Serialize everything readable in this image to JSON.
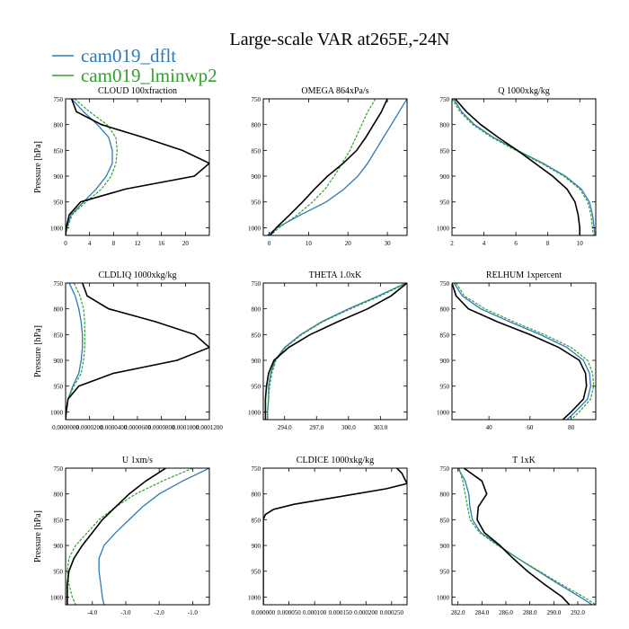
{
  "figure": {
    "title": "Large-scale VAR at265E,-24N",
    "legend": [
      {
        "name": "cam019_dflt",
        "color": "#2b7bb9"
      },
      {
        "name": "cam019_lminwp2",
        "color": "#33a02c"
      }
    ],
    "ref_line_color": "#000000"
  },
  "chart_data": [
    {
      "type": "line",
      "title": "CLOUD 100xfraction",
      "ylabel": "Pressure [hPa]",
      "xlim": [
        0,
        24
      ],
      "ylim": [
        1015,
        750
      ],
      "xticks": [
        "0",
        "4",
        "8",
        "12",
        "16",
        "20"
      ],
      "xtick_values": [
        0,
        4,
        8,
        12,
        16,
        20
      ],
      "yticks": [
        "750",
        "800",
        "850",
        "900",
        "950",
        "1000"
      ],
      "ytick_values": [
        750,
        800,
        850,
        900,
        950,
        1000
      ],
      "y": [
        750,
        775,
        800,
        825,
        850,
        875,
        900,
        925,
        950,
        975,
        1000,
        1015
      ],
      "series": [
        {
          "name": "cam019_dflt",
          "values": [
            1.0,
            3.0,
            5.3,
            7.2,
            7.8,
            7.8,
            6.8,
            5.1,
            3.0,
            0.9,
            0.2,
            0.0
          ]
        },
        {
          "name": "cam019_lminwp2",
          "values": [
            1.5,
            4.0,
            6.9,
            8.4,
            8.6,
            8.4,
            7.6,
            6.0,
            3.4,
            1.1,
            0.3,
            0.0
          ]
        },
        {
          "name": "",
          "values": [
            1.0,
            1.8,
            6.0,
            13.0,
            19.5,
            24.0,
            21.5,
            10.0,
            2.5,
            0.6,
            0.1,
            0.0
          ]
        }
      ]
    },
    {
      "type": "line",
      "title": "OMEGA 864xPa/s",
      "ylabel": "",
      "xlim": [
        -1.5,
        35
      ],
      "ylim": [
        1015,
        750
      ],
      "xticks": [
        "0",
        "10",
        "20",
        "30"
      ],
      "xtick_values": [
        0,
        10,
        20,
        30
      ],
      "yticks": [
        "750",
        "800",
        "850",
        "900",
        "950",
        "1000"
      ],
      "ytick_values": [
        750,
        800,
        850,
        900,
        950,
        1000
      ],
      "y": [
        750,
        775,
        800,
        825,
        850,
        875,
        900,
        925,
        950,
        975,
        1000,
        1015
      ],
      "series": [
        {
          "name": "cam019_dflt",
          "values": [
            35,
            33,
            31,
            29,
            27,
            25,
            22.5,
            19,
            14.5,
            8,
            2,
            -0.5
          ]
        },
        {
          "name": "cam019_lminwp2",
          "values": [
            27,
            25,
            23.5,
            22,
            20.5,
            18.5,
            16.5,
            14.2,
            11,
            7.2,
            2.5,
            0.3
          ]
        },
        {
          "name": "",
          "values": [
            30,
            28.5,
            26.5,
            24.5,
            22.2,
            18.8,
            14.8,
            11.5,
            8.5,
            5.2,
            1.8,
            0.2
          ]
        }
      ]
    },
    {
      "type": "line",
      "title": "Q 1000xkg/kg",
      "ylabel": "",
      "xlim": [
        2,
        11
      ],
      "ylim": [
        1015,
        750
      ],
      "xticks": [
        "2",
        "4",
        "6",
        "8",
        "10"
      ],
      "xtick_values": [
        2,
        4,
        6,
        8,
        10
      ],
      "yticks": [
        "750",
        "800",
        "850",
        "900",
        "950",
        "1000"
      ],
      "ytick_values": [
        750,
        800,
        850,
        900,
        950,
        1000
      ],
      "y": [
        750,
        775,
        800,
        825,
        850,
        875,
        900,
        925,
        950,
        975,
        1000,
        1015
      ],
      "series": [
        {
          "name": "cam019_dflt",
          "values": [
            2.1,
            2.6,
            3.4,
            4.6,
            6.1,
            7.7,
            9.1,
            10.1,
            10.6,
            10.8,
            10.9,
            10.95
          ]
        },
        {
          "name": "cam019_lminwp2",
          "values": [
            2.0,
            2.5,
            3.3,
            4.5,
            6.0,
            7.6,
            9.0,
            10.0,
            10.5,
            10.7,
            10.8,
            10.85
          ]
        },
        {
          "name": "",
          "values": [
            2.2,
            2.9,
            3.8,
            4.9,
            6.1,
            7.2,
            8.3,
            9.2,
            9.7,
            9.9,
            10.0,
            10.0
          ]
        }
      ]
    },
    {
      "type": "line",
      "title": "CLDLIQ 1000xkg/kg",
      "ylabel": "Pressure [hPa]",
      "xlim": [
        0,
        0.00012
      ],
      "ylim": [
        1015,
        750
      ],
      "xticks": [
        "0.0000000",
        "0.0000200",
        "0.0000400",
        "0.0000600",
        "0.0000800",
        "0.0001000",
        "0.0001200"
      ],
      "xtick_values": [
        0,
        2e-05,
        4e-05,
        6e-05,
        8e-05,
        0.0001,
        0.00012
      ],
      "yticks": [
        "750",
        "800",
        "850",
        "900",
        "950",
        "1000"
      ],
      "ytick_values": [
        750,
        800,
        850,
        900,
        950,
        1000
      ],
      "y": [
        750,
        775,
        800,
        825,
        850,
        875,
        900,
        925,
        950,
        975,
        1000,
        1015
      ],
      "series": [
        {
          "name": "cam019_dflt",
          "values": [
            3e-06,
            8e-06,
            1.1e-05,
            1.3e-05,
            1.4e-05,
            1.4e-05,
            1.3e-05,
            1.1e-05,
            6e-06,
            2e-06,
            5e-07,
            0
          ]
        },
        {
          "name": "cam019_lminwp2",
          "values": [
            7e-06,
            1.2e-05,
            1.5e-05,
            1.6e-05,
            1.6e-05,
            1.6e-05,
            1.5e-05,
            1.3e-05,
            7e-06,
            2e-06,
            5e-07,
            0
          ]
        },
        {
          "name": "",
          "values": [
            1.4e-05,
            1.8e-05,
            3.6e-05,
            7.5e-05,
            0.000108,
            0.00012,
            9.3e-05,
            4e-05,
            1.1e-05,
            2e-06,
            5e-07,
            0
          ]
        }
      ]
    },
    {
      "type": "line",
      "title": "THETA 1.0xK",
      "ylabel": "",
      "xlim": [
        292,
        305.5
      ],
      "ylim": [
        1015,
        750
      ],
      "xticks": [
        "294.0",
        "297.0",
        "300.0",
        "303.0"
      ],
      "xtick_values": [
        294,
        297,
        300,
        303
      ],
      "yticks": [
        "750",
        "800",
        "850",
        "900",
        "950",
        "1000"
      ],
      "ytick_values": [
        750,
        800,
        850,
        900,
        950,
        1000
      ],
      "y": [
        750,
        775,
        800,
        825,
        850,
        875,
        900,
        925,
        950,
        975,
        1000,
        1015
      ],
      "series": [
        {
          "name": "cam019_dflt",
          "values": [
            305.4,
            302.8,
            300.0,
            297.5,
            295.5,
            294.0,
            293.1,
            292.7,
            292.5,
            292.5,
            292.4,
            292.4
          ]
        },
        {
          "name": "cam019_lminwp2",
          "values": [
            305.5,
            303.0,
            300.2,
            297.6,
            295.6,
            294.1,
            293.2,
            292.8,
            292.6,
            292.5,
            292.4,
            292.4
          ]
        },
        {
          "name": "",
          "values": [
            305.5,
            304.0,
            301.8,
            299.0,
            296.4,
            294.4,
            293.0,
            292.5,
            292.3,
            292.2,
            292.2,
            292.2
          ]
        }
      ]
    },
    {
      "type": "line",
      "title": "RELHUM 1xpercent",
      "ylabel": "",
      "xlim": [
        22,
        92
      ],
      "ylim": [
        1015,
        750
      ],
      "xticks": [
        "40",
        "60",
        "80"
      ],
      "xtick_values": [
        40,
        60,
        80
      ],
      "yticks": [
        "750",
        "800",
        "850",
        "900",
        "950",
        "1000"
      ],
      "ytick_values": [
        750,
        800,
        850,
        900,
        950,
        1000
      ],
      "y": [
        750,
        775,
        800,
        825,
        850,
        875,
        900,
        925,
        950,
        975,
        1000,
        1015
      ],
      "series": [
        {
          "name": "cam019_dflt",
          "values": [
            23,
            27,
            36,
            50,
            65,
            78,
            86,
            89,
            89.5,
            88,
            82,
            78
          ]
        },
        {
          "name": "cam019_lminwp2",
          "values": [
            24,
            28,
            38,
            52,
            67,
            80,
            88,
            90.5,
            91,
            89.5,
            84,
            80
          ]
        },
        {
          "name": "",
          "values": [
            22,
            24,
            30,
            44,
            60,
            74,
            84,
            87,
            87.5,
            86,
            80,
            76
          ]
        }
      ]
    },
    {
      "type": "line",
      "title": "U 1xm/s",
      "ylabel": "Pressure [hPa]",
      "xlim": [
        -4.8,
        -0.5
      ],
      "ylim": [
        1015,
        750
      ],
      "xticks": [
        "-4.0",
        "-3.0",
        "-2.0",
        "-1.0"
      ],
      "xtick_values": [
        -4,
        -3,
        -2,
        -1
      ],
      "yticks": [
        "750",
        "800",
        "850",
        "900",
        "950",
        "1000"
      ],
      "ytick_values": [
        750,
        800,
        850,
        900,
        950,
        1000
      ],
      "y": [
        750,
        775,
        800,
        825,
        850,
        875,
        900,
        925,
        950,
        975,
        1000,
        1015
      ],
      "series": [
        {
          "name": "cam019_dflt",
          "values": [
            -0.5,
            -1.3,
            -2.0,
            -2.5,
            -2.9,
            -3.3,
            -3.65,
            -3.8,
            -3.8,
            -3.75,
            -3.7,
            -3.65
          ]
        },
        {
          "name": "cam019_lminwp2",
          "values": [
            -1.0,
            -1.9,
            -2.7,
            -3.3,
            -3.8,
            -4.15,
            -4.5,
            -4.7,
            -4.75,
            -4.7,
            -4.6,
            -4.5
          ]
        },
        {
          "name": "",
          "values": [
            -1.8,
            -2.4,
            -2.9,
            -3.3,
            -3.7,
            -4.0,
            -4.3,
            -4.55,
            -4.7,
            -4.75,
            -4.75,
            -4.75
          ]
        }
      ]
    },
    {
      "type": "line",
      "title": "CLDICE 1000xkg/kg",
      "ylabel": "",
      "xlim": [
        0,
        0.00028
      ],
      "ylim": [
        1015,
        750
      ],
      "xticks": [
        "0.000000",
        "0.000050",
        "0.000100",
        "0.000150",
        "0.000200",
        "0.000250"
      ],
      "xtick_values": [
        0,
        5e-05,
        0.0001,
        0.00015,
        0.0002,
        0.00025
      ],
      "yticks": [
        "750",
        "800",
        "850",
        "900",
        "950",
        "1000"
      ],
      "ytick_values": [
        750,
        800,
        850,
        900,
        950,
        1000
      ],
      "y": [
        750,
        760,
        770,
        780,
        790,
        800,
        810,
        820,
        830,
        840,
        850,
        900,
        1000,
        1015
      ],
      "series": [
        {
          "name": "",
          "values": [
            0.00026,
            0.00027,
            0.000275,
            0.00028,
            0.00024,
            0.00018,
            0.00012,
            6e-05,
            2e-05,
            4e-06,
            0,
            0,
            0,
            0
          ]
        }
      ]
    },
    {
      "type": "line",
      "title": "T 1xK",
      "ylabel": "",
      "xlim": [
        281.5,
        293.5
      ],
      "ylim": [
        1015,
        750
      ],
      "xticks": [
        "282.0",
        "284.0",
        "286.0",
        "288.0",
        "290.0",
        "292.0"
      ],
      "xtick_values": [
        282,
        284,
        286,
        288,
        290,
        292
      ],
      "yticks": [
        "750",
        "800",
        "850",
        "900",
        "950",
        "1000"
      ],
      "ytick_values": [
        750,
        800,
        850,
        900,
        950,
        1000
      ],
      "y": [
        750,
        775,
        800,
        825,
        850,
        875,
        900,
        925,
        950,
        975,
        1000,
        1015
      ],
      "series": [
        {
          "name": "cam019_dflt",
          "values": [
            282.0,
            282.6,
            282.9,
            283.0,
            283.2,
            283.9,
            285.4,
            287.0,
            288.7,
            290.4,
            292.2,
            293.2
          ]
        },
        {
          "name": "cam019_lminwp2",
          "values": [
            282.1,
            282.4,
            282.6,
            282.8,
            283.0,
            283.8,
            285.3,
            287.0,
            288.8,
            290.6,
            292.5,
            293.5
          ]
        },
        {
          "name": "",
          "values": [
            282.5,
            284.0,
            284.4,
            283.7,
            283.6,
            284.2,
            285.5,
            286.6,
            287.8,
            289.2,
            290.7,
            291.3
          ]
        }
      ]
    }
  ]
}
